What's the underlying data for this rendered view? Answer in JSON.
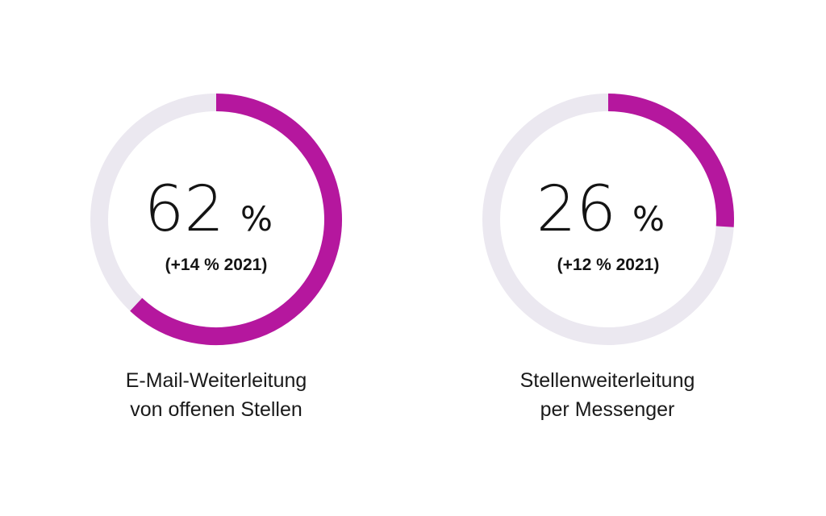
{
  "colors": {
    "accent": "#b5179e",
    "track": "#ebe8f0",
    "text": "#141414"
  },
  "chart_data": [
    {
      "type": "pie",
      "value": 62,
      "max": 100,
      "value_text": "62",
      "unit": "%",
      "change_text": "(+14 % 2021)",
      "label_lines": [
        "E-Mail-Weiterleitung",
        "von offenen Stellen"
      ]
    },
    {
      "type": "pie",
      "value": 26,
      "max": 100,
      "value_text": "26",
      "unit": "%",
      "change_text": "(+12 % 2021)",
      "label_lines": [
        "Stellenweiterleitung",
        "per Messenger"
      ]
    }
  ]
}
